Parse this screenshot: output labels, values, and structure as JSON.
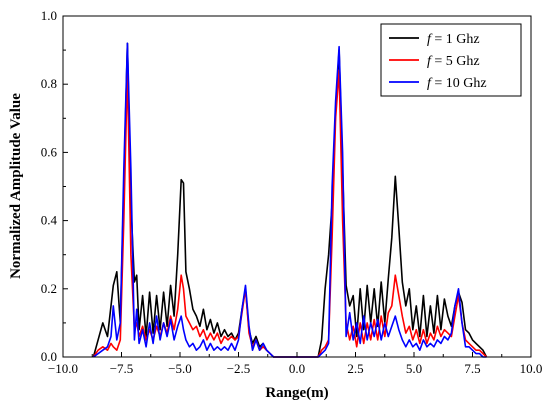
{
  "chart_data": {
    "type": "line",
    "title": "",
    "xlabel": "Range(m)",
    "ylabel": "Normalized Amplitude Value",
    "xlim": [
      -10.0,
      10.0
    ],
    "ylim": [
      0.0,
      1.0
    ],
    "xticks": [
      -10.0,
      -7.5,
      -5.0,
      -2.5,
      0.0,
      2.5,
      5.0,
      7.5,
      10.0
    ],
    "xtick_labels": [
      "−10.0",
      "−7.5",
      "−5.0",
      "−2.5",
      "0.0",
      "2.5",
      "5.0",
      "7.5",
      "10.0"
    ],
    "yticks": [
      0.0,
      0.2,
      0.4,
      0.6,
      0.8,
      1.0
    ],
    "ytick_labels": [
      "0.0",
      "0.2",
      "0.4",
      "0.6",
      "0.8",
      "1.0"
    ],
    "grid": false,
    "legend_position": "top-right",
    "series": [
      {
        "name": "f = 1 Ghz",
        "legend_italic": "f",
        "legend_rest": " = 1 Ghz",
        "color": "#000000",
        "x": [
          -8.7,
          -8.5,
          -8.3,
          -8.1,
          -7.95,
          -7.85,
          -7.7,
          -7.55,
          -7.4,
          -7.25,
          -7.1,
          -6.95,
          -6.85,
          -6.75,
          -6.6,
          -6.45,
          -6.3,
          -6.15,
          -6.0,
          -5.85,
          -5.7,
          -5.55,
          -5.4,
          -5.25,
          -5.1,
          -4.95,
          -4.85,
          -4.75,
          -4.6,
          -4.45,
          -4.3,
          -4.15,
          -4.0,
          -3.85,
          -3.7,
          -3.55,
          -3.4,
          -3.25,
          -3.1,
          -2.95,
          -2.8,
          -2.65,
          -2.5,
          -2.35,
          -2.2,
          -2.05,
          -1.9,
          -1.75,
          -1.6,
          -1.45,
          -1.3,
          -1.15,
          -1.0,
          -0.5,
          0.0,
          0.5,
          0.9,
          1.05,
          1.2,
          1.35,
          1.5,
          1.65,
          1.8,
          1.95,
          2.1,
          2.25,
          2.4,
          2.55,
          2.7,
          2.85,
          3.0,
          3.15,
          3.3,
          3.45,
          3.6,
          3.75,
          3.9,
          4.05,
          4.2,
          4.35,
          4.5,
          4.65,
          4.8,
          4.95,
          5.1,
          5.25,
          5.4,
          5.55,
          5.7,
          5.85,
          6.0,
          6.15,
          6.3,
          6.45,
          6.6,
          6.75,
          6.9,
          7.05,
          7.2,
          7.35,
          7.5,
          7.65,
          7.8,
          7.95,
          8.1
        ],
        "y": [
          0.0,
          0.05,
          0.1,
          0.06,
          0.15,
          0.21,
          0.25,
          0.1,
          0.5,
          0.92,
          0.45,
          0.22,
          0.24,
          0.08,
          0.18,
          0.06,
          0.19,
          0.07,
          0.18,
          0.08,
          0.19,
          0.09,
          0.21,
          0.12,
          0.3,
          0.52,
          0.51,
          0.25,
          0.2,
          0.14,
          0.12,
          0.09,
          0.14,
          0.08,
          0.11,
          0.07,
          0.1,
          0.06,
          0.08,
          0.06,
          0.07,
          0.05,
          0.07,
          0.14,
          0.2,
          0.08,
          0.04,
          0.06,
          0.03,
          0.04,
          0.02,
          0.01,
          0.0,
          0.0,
          0.0,
          0.0,
          0.0,
          0.05,
          0.2,
          0.3,
          0.45,
          0.72,
          0.9,
          0.55,
          0.21,
          0.15,
          0.18,
          0.06,
          0.2,
          0.08,
          0.21,
          0.1,
          0.2,
          0.09,
          0.22,
          0.1,
          0.23,
          0.35,
          0.53,
          0.38,
          0.22,
          0.15,
          0.2,
          0.08,
          0.15,
          0.06,
          0.18,
          0.06,
          0.15,
          0.07,
          0.18,
          0.08,
          0.17,
          0.12,
          0.09,
          0.15,
          0.19,
          0.16,
          0.08,
          0.07,
          0.05,
          0.04,
          0.03,
          0.02,
          0.0
        ]
      },
      {
        "name": "f = 5 Ghz",
        "legend_italic": "f",
        "legend_rest": " = 5 Ghz",
        "color": "#ff0000",
        "x": [
          -8.7,
          -8.5,
          -8.3,
          -8.1,
          -7.95,
          -7.85,
          -7.7,
          -7.55,
          -7.4,
          -7.25,
          -7.1,
          -6.95,
          -6.85,
          -6.75,
          -6.6,
          -6.45,
          -6.3,
          -6.15,
          -6.0,
          -5.85,
          -5.7,
          -5.55,
          -5.4,
          -5.25,
          -5.1,
          -4.95,
          -4.85,
          -4.75,
          -4.6,
          -4.45,
          -4.3,
          -4.15,
          -4.0,
          -3.85,
          -3.7,
          -3.55,
          -3.4,
          -3.25,
          -3.1,
          -2.95,
          -2.8,
          -2.65,
          -2.5,
          -2.35,
          -2.2,
          -2.05,
          -1.9,
          -1.75,
          -1.6,
          -1.45,
          -1.3,
          -1.15,
          -1.0,
          -0.5,
          0.0,
          0.5,
          0.9,
          1.05,
          1.2,
          1.35,
          1.5,
          1.65,
          1.8,
          1.95,
          2.1,
          2.25,
          2.4,
          2.55,
          2.7,
          2.85,
          3.0,
          3.15,
          3.3,
          3.45,
          3.6,
          3.75,
          3.9,
          4.05,
          4.2,
          4.35,
          4.5,
          4.65,
          4.8,
          4.95,
          5.1,
          5.25,
          5.4,
          5.55,
          5.7,
          5.85,
          6.0,
          6.15,
          6.3,
          6.45,
          6.6,
          6.75,
          6.9,
          7.05,
          7.2,
          7.35,
          7.5,
          7.65,
          7.8,
          7.95,
          8.1
        ],
        "y": [
          0.0,
          0.02,
          0.03,
          0.02,
          0.04,
          0.03,
          0.02,
          0.05,
          0.4,
          0.84,
          0.3,
          0.08,
          0.1,
          0.06,
          0.09,
          0.05,
          0.08,
          0.05,
          0.09,
          0.06,
          0.1,
          0.07,
          0.12,
          0.08,
          0.14,
          0.24,
          0.2,
          0.12,
          0.1,
          0.08,
          0.09,
          0.06,
          0.08,
          0.05,
          0.07,
          0.05,
          0.07,
          0.04,
          0.06,
          0.05,
          0.06,
          0.05,
          0.06,
          0.13,
          0.2,
          0.07,
          0.03,
          0.05,
          0.02,
          0.03,
          0.02,
          0.01,
          0.0,
          0.0,
          0.0,
          0.0,
          0.0,
          0.02,
          0.03,
          0.05,
          0.35,
          0.7,
          0.84,
          0.4,
          0.1,
          0.05,
          0.09,
          0.03,
          0.1,
          0.04,
          0.1,
          0.05,
          0.11,
          0.05,
          0.12,
          0.06,
          0.13,
          0.15,
          0.24,
          0.18,
          0.12,
          0.07,
          0.09,
          0.05,
          0.08,
          0.04,
          0.08,
          0.04,
          0.07,
          0.05,
          0.09,
          0.06,
          0.08,
          0.07,
          0.06,
          0.12,
          0.18,
          0.1,
          0.05,
          0.04,
          0.03,
          0.02,
          0.02,
          0.01,
          0.0
        ]
      },
      {
        "name": "f = 10 Ghz",
        "legend_italic": "f",
        "legend_rest": " = 10 Ghz",
        "color": "#0000ff",
        "x": [
          -8.7,
          -8.5,
          -8.3,
          -8.1,
          -7.95,
          -7.85,
          -7.7,
          -7.55,
          -7.4,
          -7.25,
          -7.1,
          -6.95,
          -6.85,
          -6.75,
          -6.6,
          -6.45,
          -6.3,
          -6.15,
          -6.0,
          -5.85,
          -5.7,
          -5.55,
          -5.4,
          -5.25,
          -5.1,
          -4.95,
          -4.85,
          -4.75,
          -4.6,
          -4.45,
          -4.3,
          -4.15,
          -4.0,
          -3.85,
          -3.7,
          -3.55,
          -3.4,
          -3.25,
          -3.1,
          -2.95,
          -2.8,
          -2.65,
          -2.5,
          -2.35,
          -2.2,
          -2.05,
          -1.9,
          -1.75,
          -1.6,
          -1.45,
          -1.3,
          -1.15,
          -1.0,
          -0.5,
          0.0,
          0.5,
          0.9,
          1.05,
          1.2,
          1.35,
          1.5,
          1.65,
          1.8,
          1.95,
          2.1,
          2.25,
          2.4,
          2.55,
          2.7,
          2.85,
          3.0,
          3.15,
          3.3,
          3.45,
          3.6,
          3.75,
          3.9,
          4.05,
          4.2,
          4.35,
          4.5,
          4.65,
          4.8,
          4.95,
          5.1,
          5.25,
          5.4,
          5.55,
          5.7,
          5.85,
          6.0,
          6.15,
          6.3,
          6.45,
          6.6,
          6.75,
          6.9,
          7.05,
          7.2,
          7.35,
          7.5,
          7.65,
          7.8,
          7.95,
          8.1
        ],
        "y": [
          0.0,
          0.01,
          0.02,
          0.03,
          0.06,
          0.15,
          0.05,
          0.1,
          0.55,
          0.92,
          0.55,
          0.05,
          0.14,
          0.04,
          0.08,
          0.03,
          0.1,
          0.04,
          0.12,
          0.05,
          0.1,
          0.06,
          0.11,
          0.05,
          0.09,
          0.12,
          0.08,
          0.05,
          0.03,
          0.04,
          0.02,
          0.03,
          0.05,
          0.02,
          0.04,
          0.02,
          0.03,
          0.02,
          0.03,
          0.02,
          0.04,
          0.02,
          0.05,
          0.14,
          0.21,
          0.09,
          0.02,
          0.05,
          0.02,
          0.04,
          0.02,
          0.01,
          0.0,
          0.0,
          0.0,
          0.0,
          0.0,
          0.01,
          0.02,
          0.04,
          0.5,
          0.75,
          0.91,
          0.6,
          0.06,
          0.13,
          0.05,
          0.1,
          0.04,
          0.12,
          0.05,
          0.1,
          0.06,
          0.11,
          0.05,
          0.1,
          0.06,
          0.09,
          0.12,
          0.08,
          0.05,
          0.03,
          0.05,
          0.03,
          0.04,
          0.02,
          0.05,
          0.03,
          0.04,
          0.03,
          0.05,
          0.04,
          0.06,
          0.05,
          0.07,
          0.15,
          0.2,
          0.1,
          0.03,
          0.03,
          0.02,
          0.01,
          0.01,
          0.0,
          0.0
        ]
      }
    ]
  }
}
